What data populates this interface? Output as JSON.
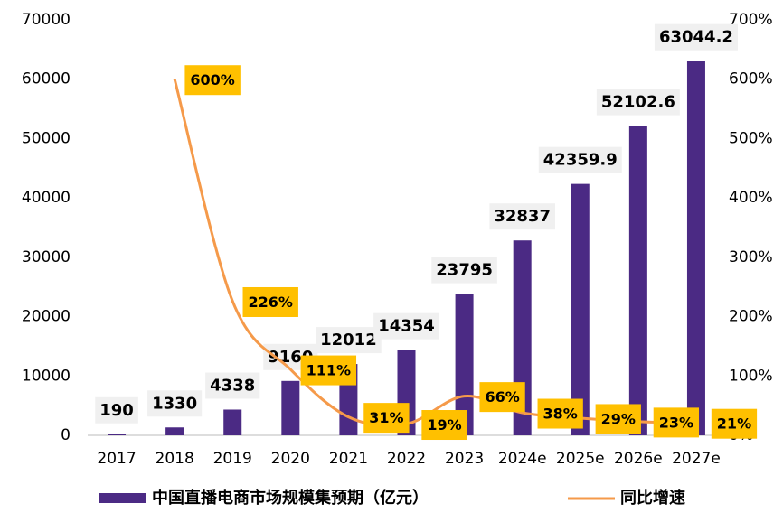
{
  "chart_data": {
    "type": "bar",
    "categories": [
      "2017",
      "2018",
      "2019",
      "2020",
      "2021",
      "2022",
      "2023",
      "2024e",
      "2025e",
      "2026e",
      "2027e"
    ],
    "series": [
      {
        "name": "中国直播电商市场规模集预期（亿元）",
        "color": "#4b2a84",
        "type": "bar",
        "values": [
          190,
          1330,
          4338,
          9160,
          12012,
          14354,
          23795,
          32837,
          42359.9,
          52102.6,
          63044.2
        ]
      },
      {
        "name": "同比增速",
        "color": "#f59a4a",
        "type": "line",
        "axis": "y2",
        "values": [
          null,
          600,
          226,
          111,
          31,
          19,
          66,
          38,
          29,
          23,
          21
        ],
        "value_labels": [
          null,
          "600%",
          "226%",
          "111%",
          "31%",
          "19%",
          "66%",
          "38%",
          "29%",
          "23%",
          "21%"
        ]
      }
    ],
    "ylim": [
      0,
      70000
    ],
    "yticks": [
      0,
      10000,
      20000,
      30000,
      40000,
      50000,
      60000,
      70000
    ],
    "y2lim": [
      0,
      700
    ],
    "y2ticks": [
      {
        "value": 0,
        "label": "0%"
      },
      {
        "value": 100,
        "label": "100%"
      },
      {
        "value": 200,
        "label": "200%"
      },
      {
        "value": 300,
        "label": "300%"
      },
      {
        "value": 400,
        "label": "400%"
      },
      {
        "value": 500,
        "label": "500%"
      },
      {
        "value": 600,
        "label": "600%"
      },
      {
        "value": 700,
        "label": "700%"
      }
    ]
  }
}
